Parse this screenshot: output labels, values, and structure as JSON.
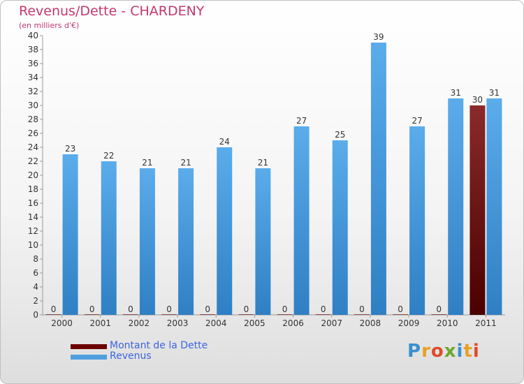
{
  "chart_data": {
    "type": "bar",
    "title": "Revenus/Dette - CHARDENY",
    "subtitle": "(en milliers d'€)",
    "categories": [
      "2000",
      "2001",
      "2002",
      "2003",
      "2004",
      "2005",
      "2006",
      "2007",
      "2008",
      "2009",
      "2010",
      "2011"
    ],
    "series": [
      {
        "name": "Montant de la Dette",
        "color": "#6b0000",
        "values": [
          0,
          0,
          0,
          0,
          0,
          0,
          0,
          0,
          0,
          0,
          0,
          30
        ]
      },
      {
        "name": "Revenus",
        "color": "#4f9fdf",
        "values": [
          23,
          22,
          21,
          21,
          24,
          21,
          27,
          25,
          39,
          27,
          31,
          31
        ]
      }
    ],
    "ylim": [
      0,
      40
    ],
    "ytick_step": 2,
    "grid": false,
    "legend_position": "bottom-left"
  },
  "logo": {
    "letters": [
      "P",
      "r",
      "o",
      "x",
      "i",
      "t",
      "i"
    ],
    "colors": [
      "#3a8fd0",
      "#e8a022",
      "#e04b2a",
      "#6aa82e",
      "#3a8fd0",
      "#e8a022",
      "#e04b2a"
    ]
  }
}
